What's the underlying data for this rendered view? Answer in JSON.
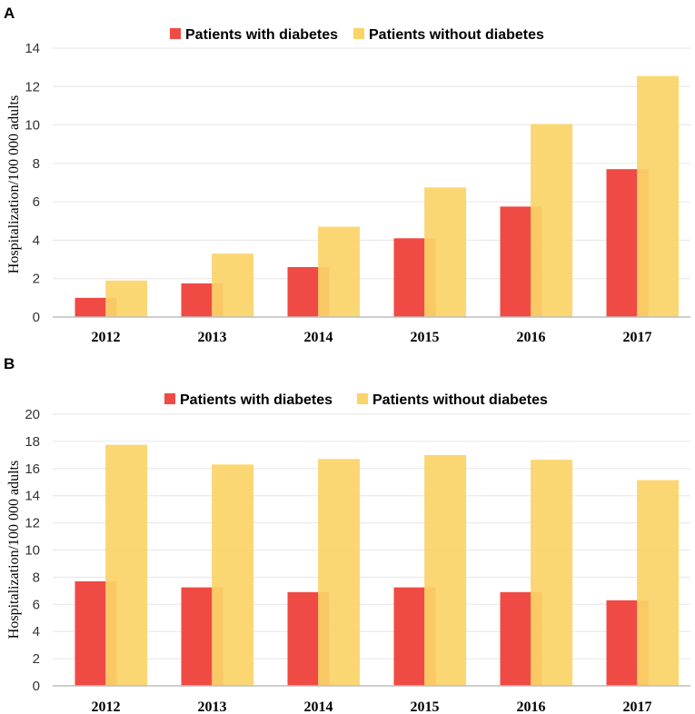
{
  "chart_data": [
    {
      "panel": "A",
      "type": "bar",
      "categories": [
        "2012",
        "2013",
        "2014",
        "2015",
        "2016",
        "2017"
      ],
      "series": [
        {
          "name": "Patients with diabetes",
          "color": "#f04a45",
          "values": [
            1.0,
            1.75,
            2.6,
            4.1,
            5.75,
            7.7
          ]
        },
        {
          "name": "Patients without diabetes",
          "color": "#fbd468",
          "values": [
            1.9,
            3.3,
            4.7,
            6.75,
            10.05,
            12.55
          ]
        }
      ],
      "ylabel": "Hospitalization/100 000 adults",
      "xlabel": "",
      "ylim": [
        0,
        14
      ],
      "yticks": [
        "0",
        "2",
        "4",
        "6",
        "8",
        "10",
        "12",
        "14"
      ],
      "grid": true,
      "legend": "top-center"
    },
    {
      "panel": "B",
      "type": "bar",
      "categories": [
        "2012",
        "2013",
        "2014",
        "2015",
        "2016",
        "2017"
      ],
      "series": [
        {
          "name": "Patients with diabetes",
          "color": "#f04a45",
          "values": [
            7.7,
            7.25,
            6.9,
            7.25,
            6.9,
            6.3
          ]
        },
        {
          "name": "Patients without diabetes",
          "color": "#fbd468",
          "values": [
            17.75,
            16.3,
            16.7,
            17.0,
            16.65,
            15.15
          ]
        }
      ],
      "ylabel": "Hospitalization/100 000 adults",
      "xlabel": "",
      "ylim": [
        0,
        20
      ],
      "yticks": [
        "0",
        "2",
        "4",
        "6",
        "8",
        "10",
        "12",
        "14",
        "16",
        "18",
        "20"
      ],
      "grid": true,
      "legend": "top-center"
    }
  ]
}
